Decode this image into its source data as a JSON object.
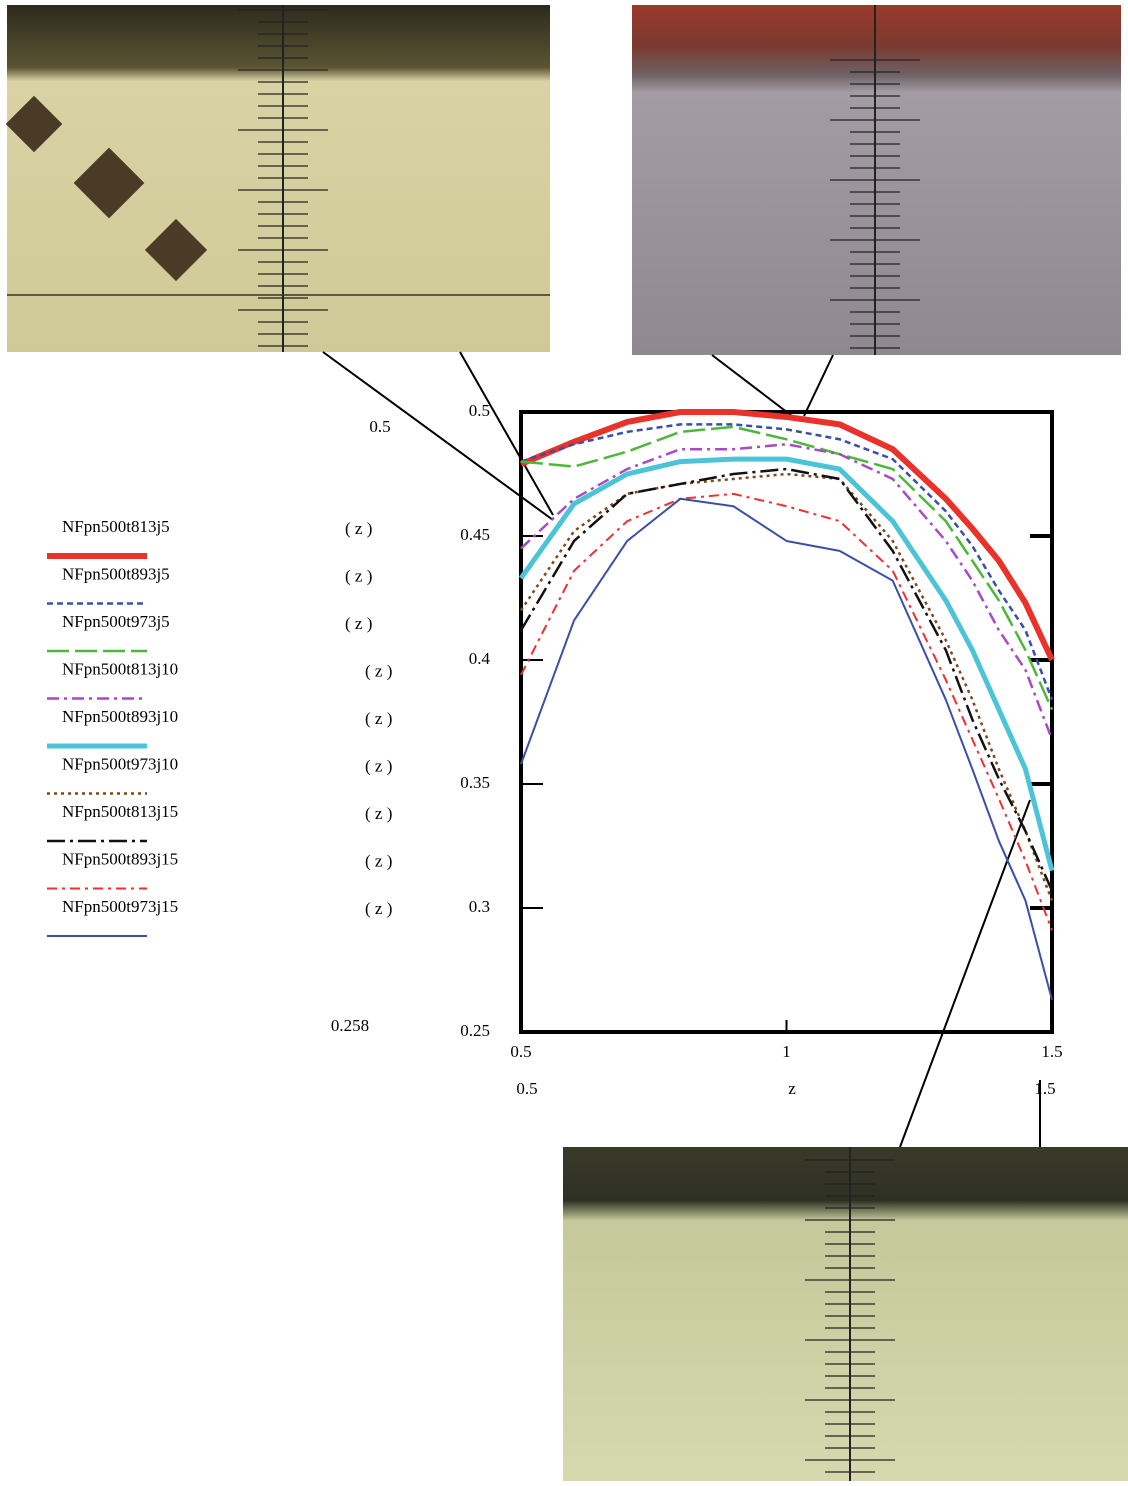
{
  "chart_data": {
    "type": "line",
    "x_label": "z",
    "limit_labels": {
      "ymax": "0.5",
      "ymin": "0.258",
      "xmin": "0.5",
      "xmax": "1.5"
    },
    "legend_suffix": "( z )",
    "x": [
      0.5,
      0.6,
      0.7,
      0.8,
      0.9,
      1.0,
      1.1,
      1.2,
      1.3,
      1.35,
      1.4,
      1.45,
      1.5
    ],
    "xlim": [
      0.5,
      1.5
    ],
    "xticks": [
      0.5,
      1,
      1.5
    ],
    "ylim": [
      0.25,
      0.5
    ],
    "yticks": [
      0.25,
      0.3,
      0.35,
      0.4,
      0.45,
      0.5
    ],
    "series": [
      {
        "name": "NFpn500t813j5",
        "color": "#e8322a",
        "width": 6,
        "dash": "none",
        "values": [
          0.479,
          0.488,
          0.496,
          0.5,
          0.5,
          0.498,
          0.495,
          0.485,
          0.465,
          0.453,
          0.44,
          0.423,
          0.4
        ]
      },
      {
        "name": "NFpn500t893j5",
        "color": "#3a4fa8",
        "width": 2.5,
        "dash": "6,4",
        "values": [
          0.48,
          0.487,
          0.492,
          0.495,
          0.495,
          0.493,
          0.489,
          0.481,
          0.46,
          0.446,
          0.428,
          0.412,
          0.384
        ]
      },
      {
        "name": "NFpn500t973j5",
        "color": "#4cb83a",
        "width": 2.5,
        "dash": "22,6",
        "values": [
          0.48,
          0.478,
          0.484,
          0.492,
          0.494,
          0.489,
          0.483,
          0.477,
          0.456,
          0.44,
          0.424,
          0.404,
          0.38
        ]
      },
      {
        "name": "NFpn500t813j10",
        "color": "#a64cc0",
        "width": 2.5,
        "dash": "12,5,3,5",
        "values": [
          0.445,
          0.465,
          0.477,
          0.485,
          0.485,
          0.487,
          0.483,
          0.473,
          0.448,
          0.432,
          0.412,
          0.396,
          0.368
        ]
      },
      {
        "name": "NFpn500t893j10",
        "color": "#4cc4d8",
        "width": 5,
        "dash": "none",
        "values": [
          0.433,
          0.463,
          0.475,
          0.48,
          0.481,
          0.481,
          0.477,
          0.456,
          0.424,
          0.404,
          0.38,
          0.356,
          0.315
        ]
      },
      {
        "name": "NFpn500t973j10",
        "color": "#7a4a1e",
        "width": 2.5,
        "dash": "3,4",
        "values": [
          0.42,
          0.452,
          0.467,
          0.471,
          0.473,
          0.475,
          0.473,
          0.448,
          0.408,
          0.384,
          0.356,
          0.331,
          0.303
        ]
      },
      {
        "name": "NFpn500t813j15",
        "color": "#111111",
        "width": 2.5,
        "dash": "18,5,3,5",
        "values": [
          0.412,
          0.448,
          0.467,
          0.471,
          0.475,
          0.477,
          0.473,
          0.444,
          0.404,
          0.376,
          0.352,
          0.331,
          0.307
        ]
      },
      {
        "name": "NFpn500t893j15",
        "color": "#ee3030",
        "width": 2,
        "dash": "10,5,3,5",
        "values": [
          0.394,
          0.436,
          0.456,
          0.465,
          0.467,
          0.462,
          0.456,
          0.436,
          0.392,
          0.368,
          0.344,
          0.319,
          0.291
        ]
      },
      {
        "name": "NFpn500t973j15",
        "color": "#3a4fa8",
        "width": 2,
        "dash": "none",
        "values": [
          0.358,
          0.416,
          0.448,
          0.465,
          0.462,
          0.448,
          0.444,
          0.432,
          0.384,
          0.356,
          0.327,
          0.303,
          0.263
        ]
      }
    ]
  }
}
